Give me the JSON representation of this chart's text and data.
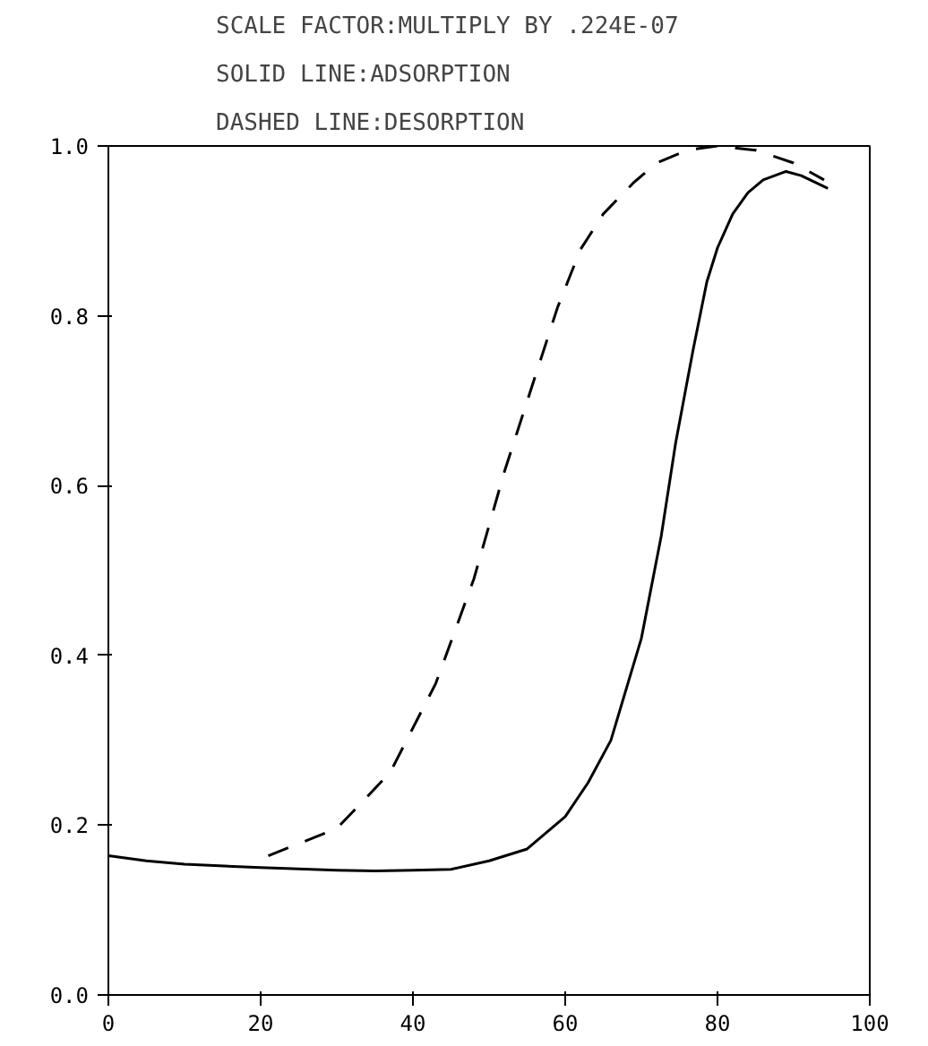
{
  "chart_data": {
    "type": "line",
    "title": "SCALE FACTOR:MULTIPLY BY    .224E-07",
    "annotations": [
      "SOLID LINE:ADSORPTION",
      "DASHED LINE:DESORPTION"
    ],
    "xlim": [
      0,
      100
    ],
    "ylim": [
      0,
      1.0
    ],
    "xticks": [
      0,
      20,
      40,
      60,
      80,
      100
    ],
    "yticks": [
      {
        "value": 0,
        "label": "0.0"
      },
      {
        "value": 0.2,
        "label": "0.2"
      },
      {
        "value": 0.4,
        "label": "0.4"
      },
      {
        "value": 0.6,
        "label": "0.6"
      },
      {
        "value": 0.8,
        "label": "0.8"
      },
      {
        "value": 1.0,
        "label": "1.0"
      }
    ],
    "grid": false,
    "series": [
      {
        "color": "#000000",
        "line_style": "solid",
        "x": [
          0,
          5,
          10,
          20,
          30,
          35,
          40,
          45,
          50,
          55,
          60,
          63,
          66,
          70,
          72.6,
          74.5,
          76.8,
          78.6,
          80,
          82,
          84,
          86,
          89,
          91,
          94.5
        ],
        "values": [
          0.164,
          0.158,
          0.154,
          0.15,
          0.147,
          0.146,
          0.147,
          0.148,
          0.158,
          0.172,
          0.21,
          0.25,
          0.3,
          0.42,
          0.54,
          0.65,
          0.76,
          0.84,
          0.88,
          0.92,
          0.945,
          0.96,
          0.97,
          0.965,
          0.95
        ]
      },
      {
        "color": "#000000",
        "line_style": "dashed",
        "x": [
          21,
          30,
          37,
          43,
          48,
          52,
          56,
          59,
          62,
          65,
          69,
          72,
          76,
          80,
          85,
          90,
          94
        ],
        "values": [
          0.164,
          0.196,
          0.262,
          0.367,
          0.49,
          0.616,
          0.727,
          0.81,
          0.878,
          0.92,
          0.957,
          0.98,
          0.995,
          1.0,
          0.995,
          0.98,
          0.96
        ]
      }
    ]
  }
}
